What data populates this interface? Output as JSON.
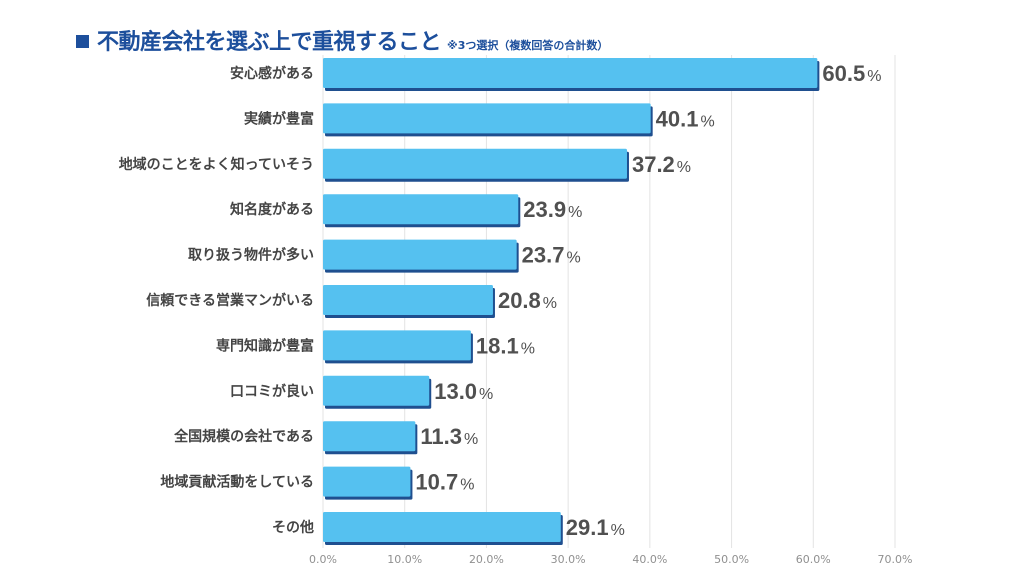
{
  "chart_data": {
    "type": "bar",
    "orientation": "horizontal",
    "title": "不動産会社を選ぶ上で重視すること",
    "subtitle": "※3つ選択（複数回答の合計数）",
    "categories": [
      "安心感がある",
      "実績が豊富",
      "地域のことをよく知っていそう",
      "知名度がある",
      "取り扱う物件が多い",
      "信頼できる営業マンがいる",
      "専門知識が豊富",
      "口コミが良い",
      "全国規模の会社である",
      "地域貢献活動をしている",
      "その他"
    ],
    "values": [
      60.5,
      40.1,
      37.2,
      23.9,
      23.7,
      20.8,
      18.1,
      13.0,
      11.3,
      10.7,
      29.1
    ],
    "value_labels": [
      "60.5",
      "40.1",
      "37.2",
      "23.9",
      "23.7",
      "20.8",
      "18.1",
      "13.0",
      "11.3",
      "10.7",
      "29.1"
    ],
    "value_suffix": "%",
    "xlim": [
      0,
      70
    ],
    "xticks": [
      0,
      10,
      20,
      30,
      40,
      50,
      60,
      70
    ],
    "xtick_labels": [
      "0.0%",
      "10.0%",
      "20.0%",
      "30.0%",
      "40.0%",
      "50.0%",
      "60.0%",
      "70.0%"
    ],
    "grid": true,
    "xlabel": "",
    "ylabel": "",
    "colors": {
      "bar": "#55c1f0",
      "bar_shadow": "#1f4f8f",
      "grid": "#e3e3e3",
      "title": "#1d4f9c"
    }
  }
}
